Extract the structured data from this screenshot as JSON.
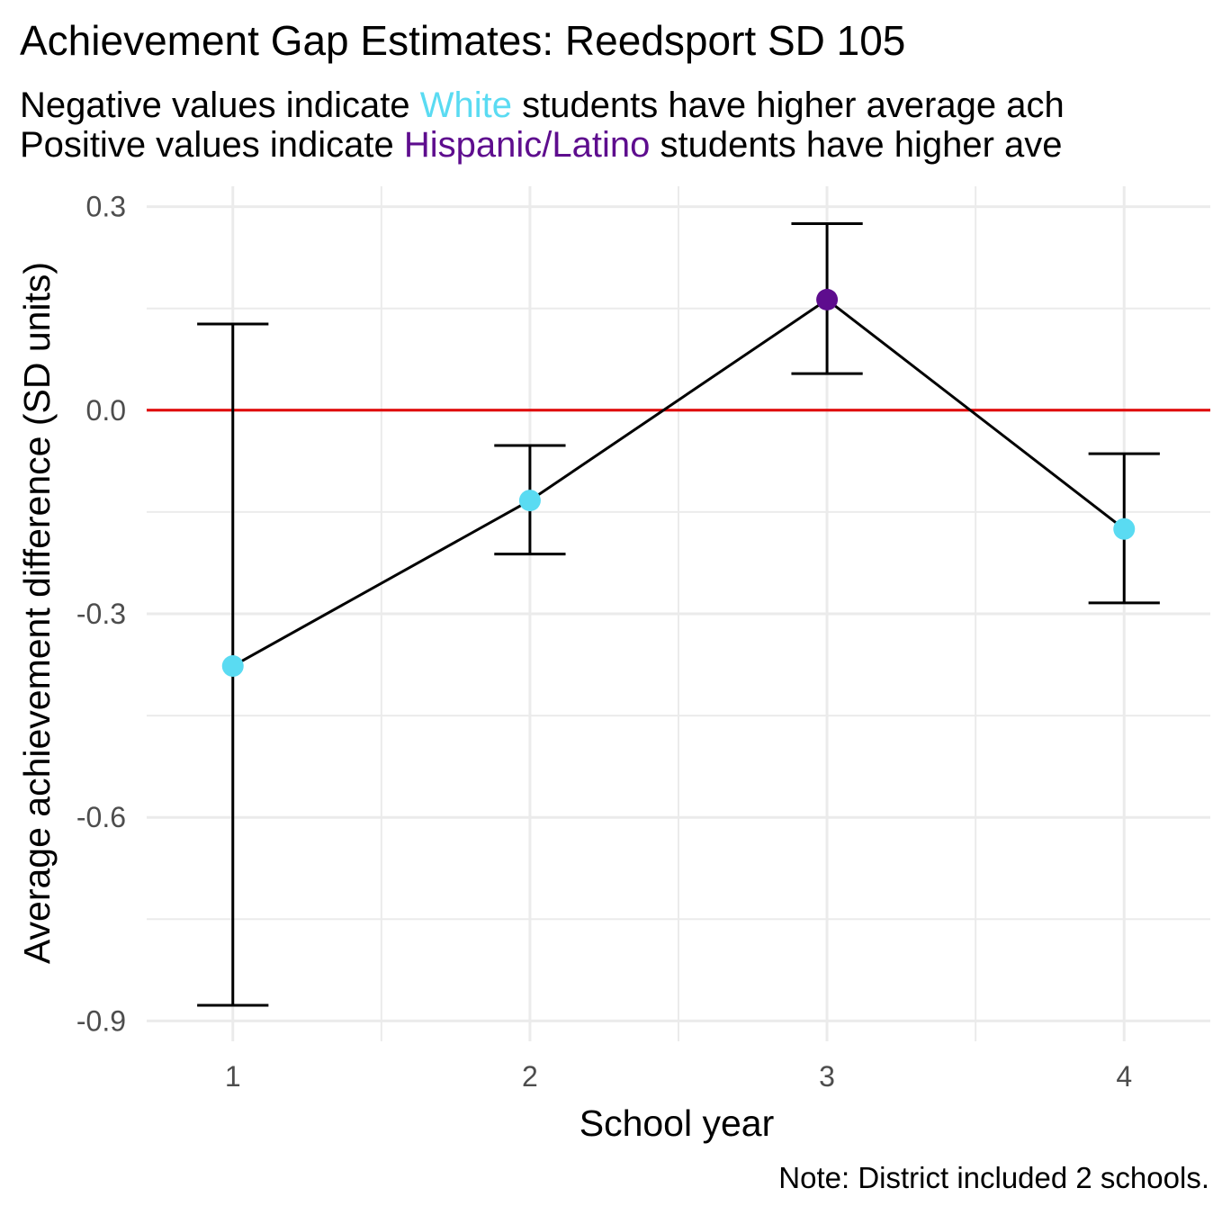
{
  "title": "Achievement Gap Estimates: Reedsport SD 105",
  "subtitle": {
    "line1": {
      "before": "Negative values indicate ",
      "highlight": "White",
      "after": " students have higher average ach"
    },
    "line2": {
      "before": "Positive values indicate ",
      "highlight": "Hispanic/Latino",
      "after": " students have higher ave"
    }
  },
  "caption": "Note: District included 2 schools.",
  "colors": {
    "white_group": "#5ADBF2",
    "hispanic_group": "#5E0D8E",
    "reference_line": "#E00000",
    "grid": "#EBEBEB",
    "line": "#000000"
  },
  "chart_data": {
    "type": "line",
    "xlabel": "School year",
    "ylabel": "Average achievement difference (SD units)",
    "x": [
      1,
      2,
      3,
      4
    ],
    "xticks": [
      "1",
      "2",
      "3",
      "4"
    ],
    "xlim": [
      0.71,
      4.29
    ],
    "y": [
      -0.377,
      -0.133,
      0.163,
      -0.175
    ],
    "ci_lower": [
      -0.877,
      -0.212,
      0.054,
      -0.284
    ],
    "ci_upper": [
      0.127,
      -0.052,
      0.275,
      -0.064
    ],
    "point_group": [
      "White",
      "White",
      "Hispanic/Latino",
      "White"
    ],
    "ylim": [
      -0.93,
      0.33
    ],
    "yticks": [
      -0.9,
      -0.6,
      -0.3,
      0.0,
      0.3
    ],
    "ytick_labels": [
      "-0.9",
      "-0.6",
      "-0.3",
      "0.0",
      "0.3"
    ],
    "reference_line_y": 0,
    "grid": true,
    "legend": "none"
  }
}
